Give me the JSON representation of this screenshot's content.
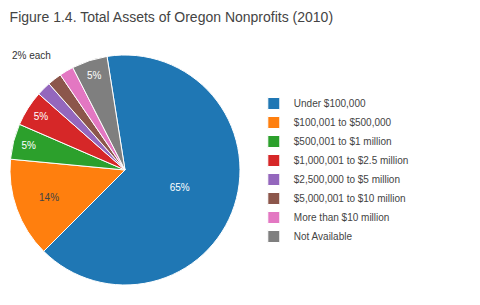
{
  "chart_data": {
    "type": "pie",
    "title": "Figure 1.4. Total Assets of Oregon Nonprofits (2010)",
    "categories": [
      "Under $100,000",
      "$100,001 to $500,000",
      "$500,001 to $1 million",
      "$1,000,001 to $2.5 million",
      "$2,500,000 to $5 million",
      "$5,000,001 to $10 million",
      "More than $10 million",
      "Not Available"
    ],
    "values": [
      65,
      14,
      5,
      5,
      2,
      2,
      2,
      5
    ],
    "value_labels": [
      "65%",
      "14%",
      "5%",
      "5%",
      null,
      null,
      null,
      "5%"
    ],
    "data_labels": true,
    "annotations": [
      "2% each"
    ],
    "legend": "right"
  }
}
